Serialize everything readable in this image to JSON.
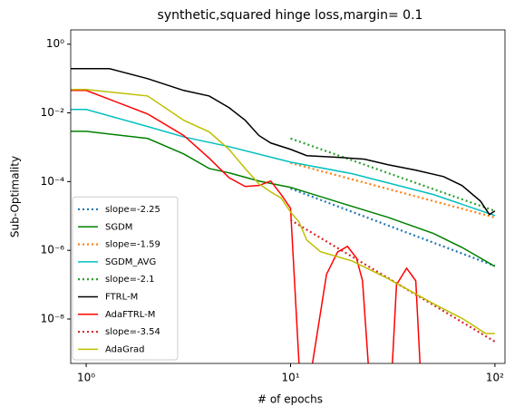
{
  "chart_data": {
    "type": "line",
    "title": "synthetic,squared hinge loss,margin= 0.1",
    "xlabel": "# of epochs",
    "ylabel": "Sub-Optimality",
    "xscale": "log",
    "yscale": "log",
    "xlim": [
      0.84,
      112
    ],
    "ylim": [
      5.1e-10,
      2.6
    ],
    "xticks": [
      {
        "value": 1,
        "label": "10⁰"
      },
      {
        "value": 10,
        "label": "10¹"
      },
      {
        "value": 100,
        "label": "10²"
      }
    ],
    "yticks": [
      {
        "value": 1,
        "label": "10⁰"
      },
      {
        "value": 0.01,
        "label": "10⁻²"
      },
      {
        "value": 0.0001,
        "label": "10⁻⁴"
      },
      {
        "value": 1e-06,
        "label": "10⁻⁶"
      },
      {
        "value": 1e-08,
        "label": "10⁻⁸"
      }
    ],
    "legend": "lower left",
    "series": [
      {
        "name": "slope=-2.25",
        "color": "#1f77b4",
        "linestyle": "dotted",
        "x": [
          10,
          100
        ],
        "values": [
          6.3e-05,
          3.5e-07
        ]
      },
      {
        "name": "SGDM",
        "color": "#008000",
        "linestyle": "solid",
        "x": [
          0.84,
          1,
          2,
          3,
          4,
          5,
          7,
          10,
          20,
          30,
          50,
          70,
          100
        ],
        "values": [
          0.0029,
          0.0029,
          0.0018,
          0.00064,
          0.00024,
          0.00018,
          0.000104,
          6.8e-05,
          1.9e-05,
          9.1e-06,
          3.1e-06,
          1.16e-06,
          3.4e-07
        ]
      },
      {
        "name": "slope=-1.59",
        "color": "#ff7f0e",
        "linestyle": "dotted",
        "x": [
          10,
          100
        ],
        "values": [
          0.00035,
          9e-06
        ]
      },
      {
        "name": "SGDM_AVG",
        "color": "#00bfbf",
        "linestyle": "solid",
        "x": [
          0.84,
          1,
          2,
          3,
          5,
          10,
          20,
          50,
          100
        ],
        "values": [
          0.0126,
          0.0126,
          0.004,
          0.002,
          0.00104,
          0.00037,
          0.00017,
          4.2e-05,
          1.03e-05
        ]
      },
      {
        "name": "slope=-2.1",
        "color": "#2ca02c",
        "linestyle": "dotted",
        "x": [
          10,
          100
        ],
        "values": [
          0.0018,
          1.4e-05
        ]
      },
      {
        "name": "FTRL-M",
        "color": "#000000",
        "linestyle": "solid",
        "x": [
          0.84,
          1.3,
          2,
          3,
          4,
          5,
          6,
          7,
          8,
          10,
          12,
          18,
          23,
          30,
          41,
          56,
          69,
          85,
          94,
          100
        ],
        "values": [
          0.194,
          0.194,
          0.099,
          0.045,
          0.031,
          0.0142,
          0.0061,
          0.0022,
          0.00133,
          0.00087,
          0.00057,
          0.0005,
          0.00045,
          0.00031,
          0.000215,
          0.00014,
          7.7e-05,
          2.7e-05,
          1.1e-05,
          1.4e-05
        ]
      },
      {
        "name": "AdaFTRL-M",
        "color": "#ff0000",
        "linestyle": "solid",
        "x": [
          0.84,
          1,
          2,
          3,
          4,
          5,
          6,
          7,
          8,
          9,
          10,
          11,
          12,
          12.8,
          15,
          17,
          19,
          21,
          22.5,
          24,
          28,
          31.5,
          33,
          37,
          41,
          43
        ],
        "values": [
          0.045,
          0.045,
          0.0093,
          0.0022,
          0.00048,
          0.00013,
          7.2e-05,
          7.7e-05,
          0.000104,
          4.2e-05,
          1.67e-05,
          5.1e-10,
          null,
          5.1e-10,
          2e-07,
          9e-07,
          1.3e-06,
          6e-07,
          1.3e-07,
          5.1e-10,
          null,
          5.1e-10,
          1e-07,
          3e-07,
          1.3e-07,
          5.1e-10
        ]
      },
      {
        "name": "slope=-3.54",
        "color": "#d62728",
        "linestyle": "dotted",
        "x": [
          10,
          100
        ],
        "values": [
          7.6e-06,
          2.2e-09
        ]
      },
      {
        "name": "AdaGrad",
        "color": "#bfbf00",
        "linestyle": "solid",
        "x": [
          0.84,
          1,
          2,
          3,
          4,
          5,
          6,
          7,
          8,
          9,
          10,
          11,
          12,
          14,
          20,
          30,
          50,
          70,
          90,
          100
        ],
        "values": [
          0.048,
          0.048,
          0.031,
          0.0061,
          0.0028,
          0.00087,
          0.00024,
          8.6e-05,
          5e-05,
          3.3e-05,
          1.3e-05,
          6.7e-06,
          2e-06,
          9.1e-07,
          4.9e-07,
          1.5e-07,
          2.8e-08,
          1e-08,
          3.8e-09,
          3.8e-09
        ]
      }
    ]
  }
}
